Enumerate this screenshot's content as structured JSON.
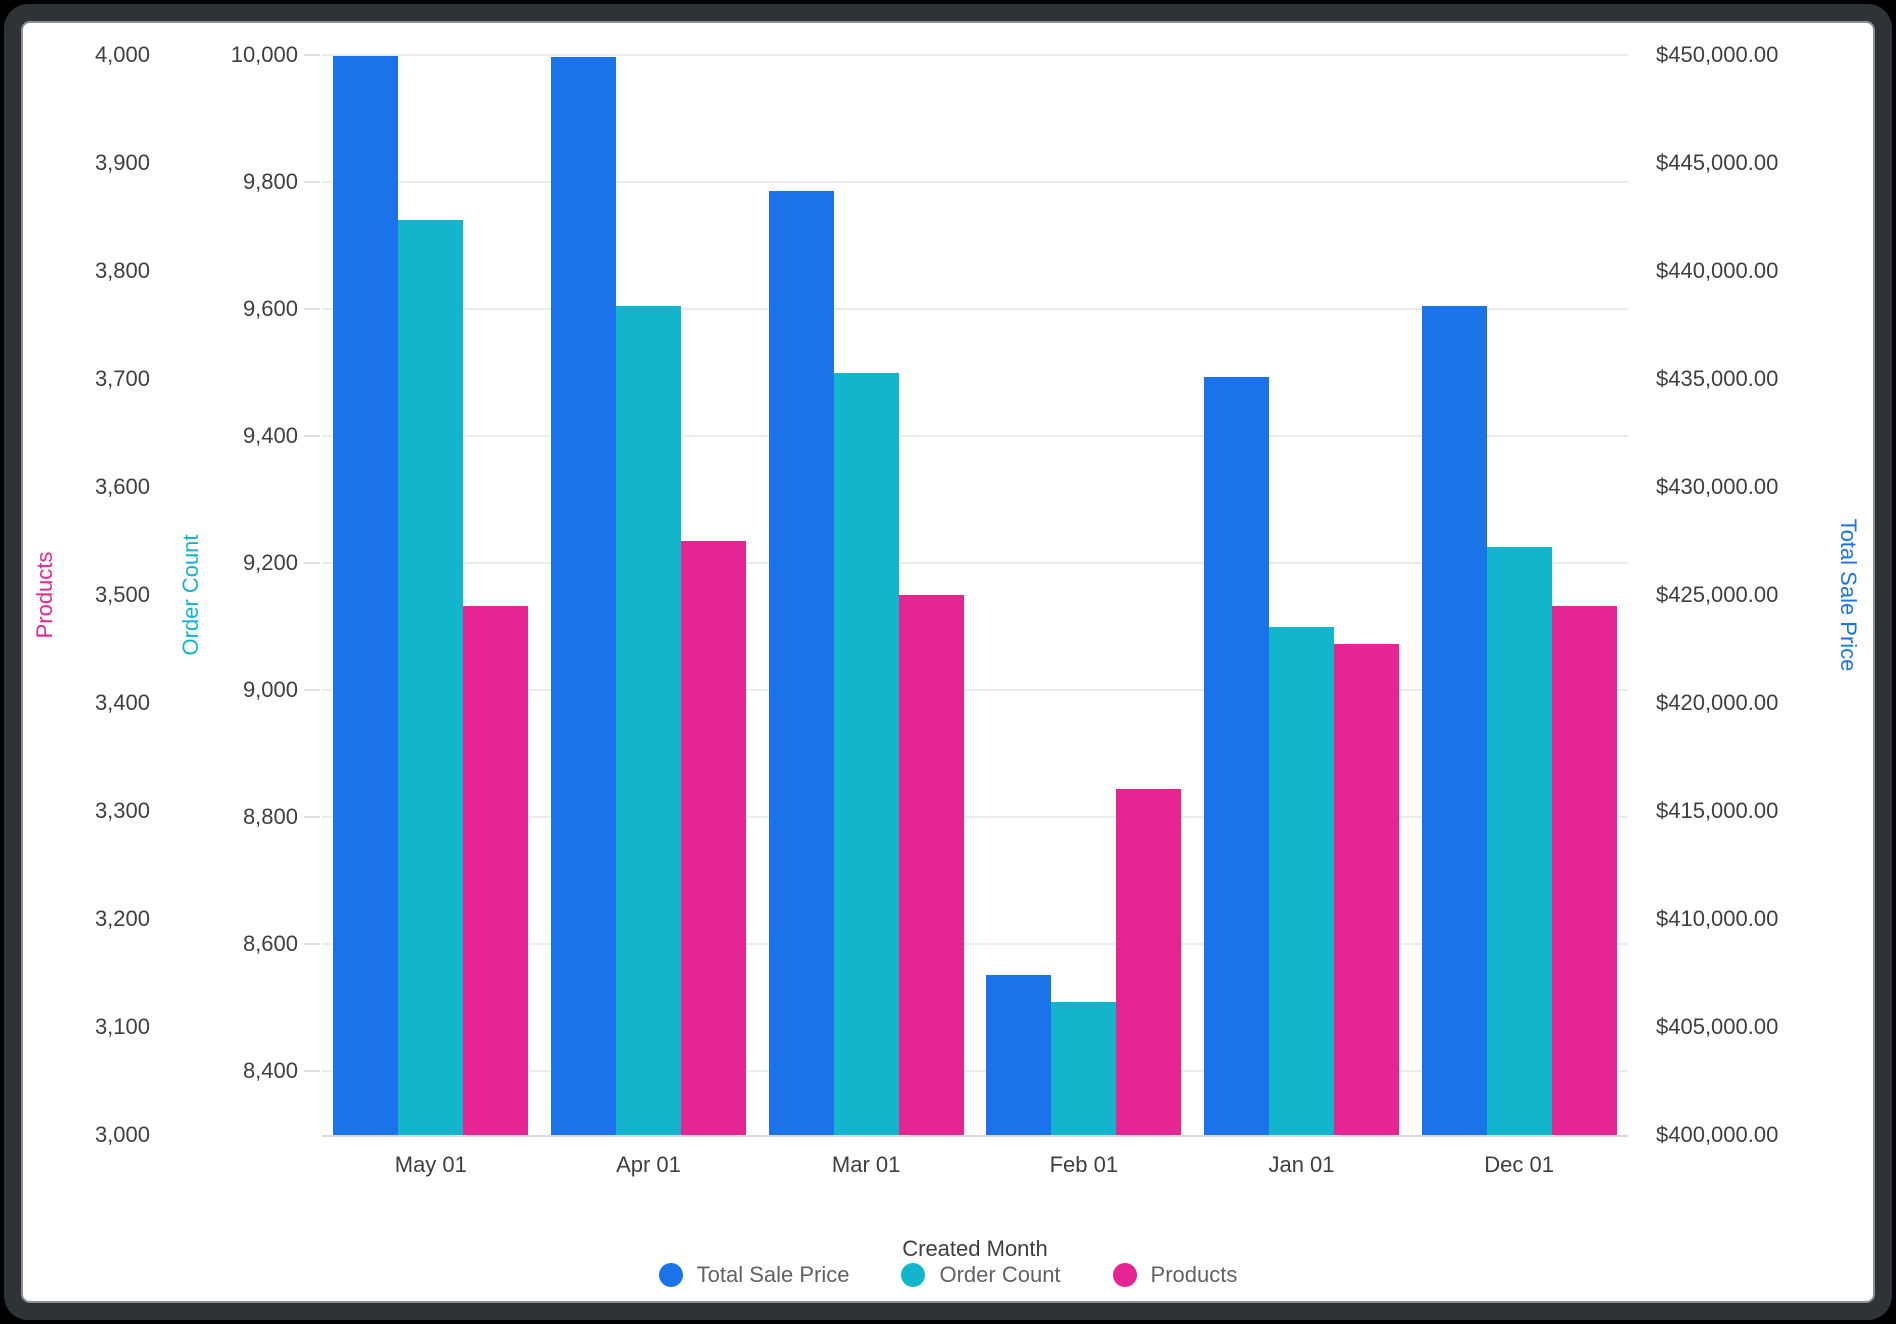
{
  "chart_data": {
    "type": "bar",
    "title": "",
    "xlabel": "Created Month",
    "categories": [
      "May 01",
      "Apr 01",
      "Mar 01",
      "Feb 01",
      "Jan 01",
      "Dec 01"
    ],
    "series": [
      {
        "name": "Total Sale Price",
        "axis": "price",
        "color": "#1A73E8",
        "values": [
          449950,
          449900,
          443700,
          407400,
          435100,
          438400
        ]
      },
      {
        "name": "Order Count",
        "axis": "order",
        "color": "#12B5CB",
        "values": [
          9740,
          9605,
          9500,
          8510,
          9100,
          9225
        ]
      },
      {
        "name": "Products",
        "axis": "products",
        "color": "#E52592",
        "values": [
          3490,
          3550,
          3500,
          3320,
          3455,
          3490
        ]
      }
    ],
    "axes": {
      "products": {
        "label": "Products",
        "color": "#E52592",
        "min": 3000,
        "max": 4000,
        "ticks": [
          4000,
          3900,
          3800,
          3700,
          3600,
          3500,
          3400,
          3300,
          3200,
          3100,
          3000
        ],
        "format": "number"
      },
      "order": {
        "label": "Order Count",
        "color": "#12B5CB",
        "min": 8300,
        "max": 10000,
        "ticks": [
          10000,
          9800,
          9600,
          9400,
          9200,
          9000,
          8800,
          8600,
          8400
        ],
        "format": "number"
      },
      "price": {
        "label": "Total Sale Price",
        "color": "#1A73E8",
        "min": 400000,
        "max": 450000,
        "ticks": [
          450000,
          445000,
          440000,
          435000,
          430000,
          425000,
          420000,
          415000,
          410000,
          405000,
          400000
        ],
        "format": "usd"
      }
    },
    "legend": [
      {
        "label": "Total Sale Price",
        "color": "#1A73E8"
      },
      {
        "label": "Order Count",
        "color": "#12B5CB"
      },
      {
        "label": "Products",
        "color": "#E52592"
      }
    ],
    "legend_position": "bottom",
    "grid": {
      "on": true,
      "follows": "order"
    }
  }
}
